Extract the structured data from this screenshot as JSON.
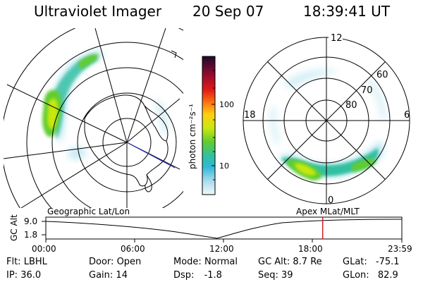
{
  "header": {
    "instrument": "Ultraviolet Imager",
    "date": "20 Sep 07",
    "time": "18:39:41 UT"
  },
  "colorbar": {
    "unit_label": "photon cm⁻²s⁻¹",
    "ticks": [
      "100",
      "10"
    ],
    "colors": [
      "#1a0a2a",
      "#5a0a3a",
      "#9a0a1a",
      "#d01010",
      "#ff3010",
      "#ff8a10",
      "#ffd010",
      "#e8f010",
      "#a0e010",
      "#50c830",
      "#30c0a0",
      "#30b8d8",
      "#a0dcec",
      "#e8f4f8"
    ]
  },
  "left_panel": {
    "label": "Geographic Lat/Lon"
  },
  "right_panel": {
    "label": "Apex  MLat/MLT",
    "mlt_labels": {
      "top": "12",
      "bottom": "0",
      "left": "18",
      "right": "6"
    },
    "lat_labels": [
      "60",
      "70",
      "80"
    ]
  },
  "timeline": {
    "y_label": "GC Alt",
    "y_ticks": [
      "9.0",
      "1.8"
    ],
    "x_ticks": [
      "00:00",
      "06:00",
      "12:00",
      "18:00",
      "23:59"
    ],
    "current_marker_time": "18:39",
    "marker_color": "#d02020"
  },
  "info": {
    "flt_label": "Flt:",
    "flt_value": "LBHL",
    "ip_label": "IP:",
    "ip_value": "36.0",
    "door_label": "Door:",
    "door_value": "Open",
    "gain_label": "Gain:",
    "gain_value": "14",
    "mode_label": "Mode:",
    "mode_value": "Normal",
    "dsp_label": "Dsp:",
    "dsp_value": "-1.8",
    "gcalt_label": "GC Alt:",
    "gcalt_value": "8.7 Re",
    "seq_label": "Seq:",
    "seq_value": "39",
    "glat_label": "GLat:",
    "glat_value": "-75.1",
    "glon_label": "GLon:",
    "glon_value": "82.9"
  }
}
